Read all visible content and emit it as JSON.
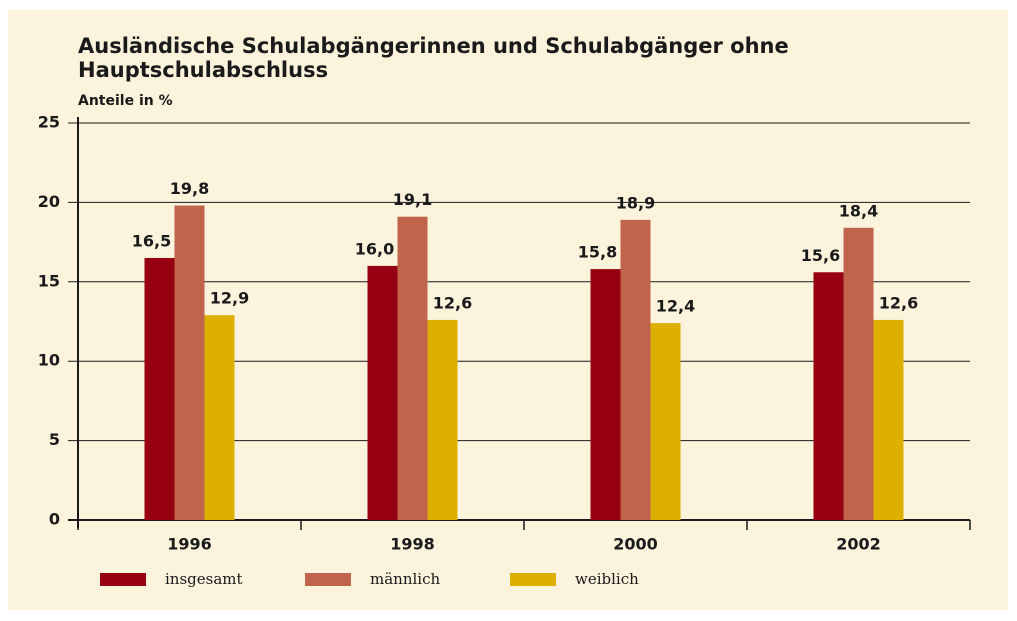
{
  "chart_data": {
    "type": "bar",
    "title": "Ausländische Schulabgängerinnen und Schulabgänger ohne Hauptschulabschluss",
    "subtitle": "Anteile in %",
    "categories": [
      "1996",
      "1998",
      "2000",
      "2002"
    ],
    "series": [
      {
        "name": "insgesamt",
        "color": "#960010",
        "values": [
          16.5,
          16.0,
          15.8,
          15.6
        ],
        "value_labels": [
          "16,5",
          "16,0",
          "15,8",
          "15,6"
        ]
      },
      {
        "name": "männlich",
        "color": "#c0654b",
        "values": [
          19.8,
          19.1,
          18.9,
          18.4
        ],
        "value_labels": [
          "19,8",
          "19,1",
          "18,9",
          "18,4"
        ]
      },
      {
        "name": "weiblich",
        "color": "#ddb000",
        "values": [
          12.9,
          12.6,
          12.4,
          12.6
        ],
        "value_labels": [
          "12,9",
          "12,6",
          "12,4",
          "12,6"
        ]
      }
    ],
    "ylim": [
      0,
      25
    ],
    "yticks": [
      0,
      5,
      10,
      15,
      20,
      25
    ],
    "grid": true
  }
}
